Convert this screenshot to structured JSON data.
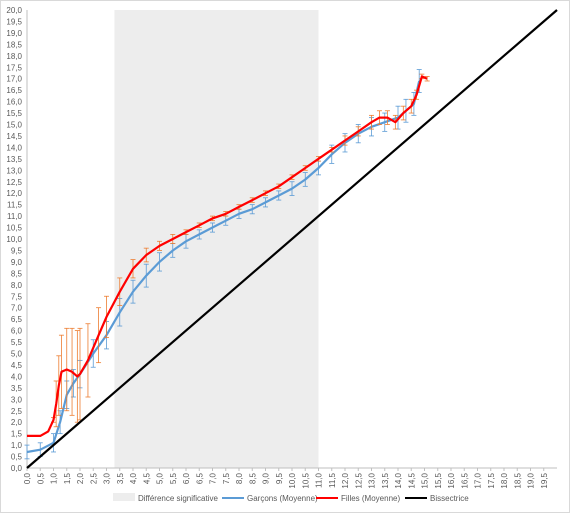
{
  "chart_data": {
    "type": "line",
    "x_ticks": [
      "0,0",
      "0,5",
      "1,0",
      "1,5",
      "2,0",
      "2,5",
      "3,0",
      "3,5",
      "4,0",
      "4,5",
      "5,0",
      "5,5",
      "6,0",
      "6,5",
      "7,0",
      "7,5",
      "8,0",
      "8,5",
      "9,0",
      "9,5",
      "10,0",
      "10,5",
      "11,0",
      "11,5",
      "12,0",
      "12,5",
      "13,0",
      "13,5",
      "14,0",
      "14,5",
      "15,0",
      "15,5",
      "16,0",
      "16,5",
      "17,0",
      "17,5",
      "18,0",
      "18,5",
      "19,0",
      "19,5"
    ],
    "y_ticks": [
      "0,0",
      "0,5",
      "1,0",
      "1,5",
      "2,0",
      "2,5",
      "3,0",
      "3,5",
      "4,0",
      "4,5",
      "5,0",
      "5,5",
      "6,0",
      "6,5",
      "7,0",
      "7,5",
      "8,0",
      "8,5",
      "9,0",
      "9,5",
      "10,0",
      "10,5",
      "11,0",
      "11,5",
      "12,0",
      "12,5",
      "13,0",
      "13,5",
      "14,0",
      "14,5",
      "15,0",
      "15,5",
      "16,0",
      "16,5",
      "17,0",
      "17,5",
      "18,0",
      "18,5",
      "19,0",
      "19,5",
      "20,0"
    ],
    "xlim": [
      0,
      20
    ],
    "ylim": [
      0,
      20
    ],
    "grid": false,
    "legend_position": "bottom",
    "shaded_region": {
      "name": "Différence significative",
      "x_start": 3.3,
      "x_end": 11.0,
      "color": "#ededed"
    },
    "series": [
      {
        "name": "Garçons (Moyenne)",
        "color": "#5b9bd5",
        "x": [
          0.0,
          0.5,
          1.0,
          1.25,
          1.5,
          1.75,
          2.0,
          2.5,
          3.0,
          3.5,
          4.0,
          4.5,
          5.0,
          5.5,
          6.0,
          6.5,
          7.0,
          7.5,
          8.0,
          8.5,
          9.0,
          9.5,
          10.0,
          10.5,
          11.0,
          11.5,
          12.0,
          12.5,
          13.0,
          13.5,
          14.0,
          14.3,
          14.6,
          14.8
        ],
        "y": [
          0.7,
          0.8,
          1.1,
          2.0,
          3.2,
          3.7,
          4.1,
          5.0,
          5.8,
          6.8,
          7.7,
          8.4,
          9.0,
          9.5,
          9.9,
          10.2,
          10.5,
          10.8,
          11.1,
          11.3,
          11.6,
          11.9,
          12.2,
          12.6,
          13.1,
          13.7,
          14.2,
          14.6,
          14.9,
          15.1,
          15.3,
          15.6,
          15.9,
          16.9
        ],
        "error": [
          0.3,
          0.3,
          0.4,
          0.5,
          0.6,
          0.6,
          0.6,
          0.6,
          0.6,
          0.6,
          0.5,
          0.5,
          0.4,
          0.3,
          0.3,
          0.2,
          0.2,
          0.2,
          0.2,
          0.2,
          0.2,
          0.2,
          0.3,
          0.3,
          0.3,
          0.4,
          0.4,
          0.4,
          0.4,
          0.4,
          0.5,
          0.5,
          0.5,
          0.5
        ]
      },
      {
        "name": "Filles (Moyenne)",
        "color": "#ff0000",
        "x": [
          0.0,
          0.5,
          0.8,
          1.0,
          1.1,
          1.2,
          1.3,
          1.5,
          1.7,
          1.9,
          2.0,
          2.3,
          2.7,
          3.0,
          3.5,
          4.0,
          4.5,
          5.0,
          5.5,
          6.0,
          6.5,
          7.0,
          7.5,
          8.0,
          8.5,
          9.0,
          9.5,
          10.0,
          10.5,
          11.0,
          11.5,
          12.0,
          12.5,
          13.0,
          13.3,
          13.6,
          13.9,
          14.2,
          14.5,
          14.7,
          14.9,
          15.1
        ],
        "y": [
          1.4,
          1.4,
          1.6,
          2.1,
          2.8,
          3.6,
          4.2,
          4.3,
          4.2,
          4.0,
          4.1,
          4.7,
          5.8,
          6.6,
          7.7,
          8.7,
          9.3,
          9.7,
          10.0,
          10.3,
          10.6,
          10.9,
          11.1,
          11.4,
          11.7,
          12.0,
          12.3,
          12.7,
          13.1,
          13.5,
          13.9,
          14.3,
          14.7,
          15.1,
          15.3,
          15.3,
          15.1,
          15.5,
          15.8,
          16.3,
          17.1,
          17.0
        ],
        "error": [
          0,
          0,
          0,
          0.1,
          1.0,
          1.3,
          1.6,
          1.8,
          1.9,
          2.0,
          2.0,
          1.6,
          1.2,
          0.9,
          0.6,
          0.4,
          0.3,
          0.2,
          0.2,
          0.1,
          0.1,
          0.1,
          0.1,
          0.1,
          0.1,
          0.1,
          0.1,
          0.1,
          0.1,
          0.1,
          0.1,
          0.2,
          0.2,
          0.3,
          0.3,
          0.3,
          0.3,
          0.3,
          0.3,
          0.2,
          0.1,
          0.1
        ],
        "error_color": "#ed7d31"
      },
      {
        "name": "Bissectrice",
        "color": "#000000",
        "x": [
          0,
          20
        ],
        "y": [
          0,
          20
        ]
      }
    ]
  }
}
